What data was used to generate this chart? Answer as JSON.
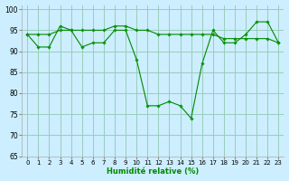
{
  "xlabel": "Humidité relative (%)",
  "background_color": "#cceeff",
  "grid_color": "#99ccbb",
  "line_color": "#008800",
  "marker_color": "#009900",
  "x": [
    0,
    1,
    2,
    3,
    4,
    5,
    6,
    7,
    8,
    9,
    10,
    11,
    12,
    13,
    14,
    15,
    16,
    17,
    18,
    19,
    20,
    21,
    22,
    23
  ],
  "line_volatile": [
    94,
    91,
    91,
    96,
    95,
    91,
    92,
    92,
    95,
    95,
    88,
    77,
    77,
    78,
    77,
    74,
    87,
    95,
    92,
    92,
    94,
    97,
    97,
    92
  ],
  "line_smooth": [
    94,
    94,
    94,
    95,
    95,
    95,
    95,
    95,
    96,
    96,
    95,
    95,
    94,
    94,
    94,
    94,
    94,
    94,
    93,
    93,
    93,
    93,
    93,
    92
  ],
  "ylim": [
    65,
    101
  ],
  "xlim": [
    -0.5,
    23.5
  ],
  "yticks": [
    65,
    70,
    75,
    80,
    85,
    90,
    95,
    100
  ],
  "xticks": [
    0,
    1,
    2,
    3,
    4,
    5,
    6,
    7,
    8,
    9,
    10,
    11,
    12,
    13,
    14,
    15,
    16,
    17,
    18,
    19,
    20,
    21,
    22,
    23
  ]
}
